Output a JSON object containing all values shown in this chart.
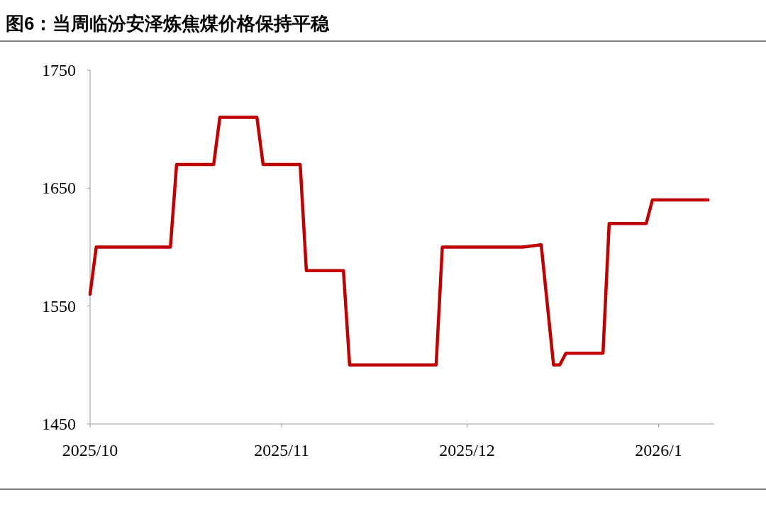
{
  "chart_data": {
    "type": "line",
    "title": "图6：当周临汾安泽炼焦煤价格保持平稳",
    "x": [
      "2025-10-01",
      "2025-10-02",
      "2025-10-14",
      "2025-10-15",
      "2025-10-21",
      "2025-10-22",
      "2025-10-28",
      "2025-10-29",
      "2025-11-04",
      "2025-11-05",
      "2025-11-11",
      "2025-11-12",
      "2025-11-26",
      "2025-11-27",
      "2025-12-10",
      "2025-12-13",
      "2025-12-15",
      "2025-12-16",
      "2025-12-17",
      "2025-12-23",
      "2025-12-24",
      "2025-12-30",
      "2025-12-31",
      "2026-01-09"
    ],
    "series": [
      {
        "color": "#c00000",
        "values": [
          1560,
          1600,
          1600,
          1670,
          1670,
          1710,
          1710,
          1670,
          1670,
          1580,
          1580,
          1500,
          1500,
          1600,
          1600,
          1602,
          1500,
          1500,
          1510,
          1510,
          1620,
          1620,
          1640,
          1640
        ]
      }
    ],
    "xlim": [
      "2025-10-01",
      "2026-01-10"
    ],
    "xticks": [
      {
        "value": "2025-10-01",
        "label": "2025/10"
      },
      {
        "value": "2025-11-01",
        "label": "2025/11"
      },
      {
        "value": "2025-12-01",
        "label": "2025/12"
      },
      {
        "value": "2026-01-01",
        "label": "2026/1"
      }
    ],
    "ylim": [
      1450,
      1750
    ],
    "yticks": [
      1450,
      1550,
      1650,
      1750
    ]
  }
}
